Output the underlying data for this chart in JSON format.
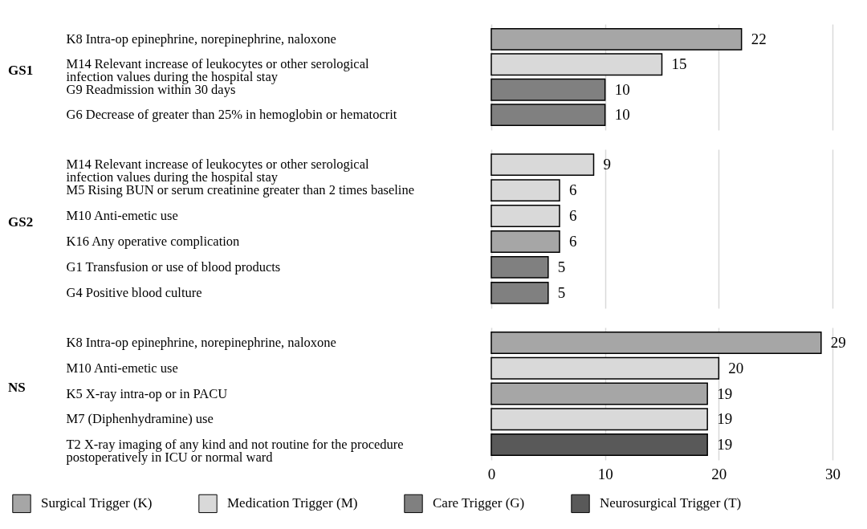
{
  "chart_data": [
    {
      "type": "bar",
      "title": "GS1",
      "orientation": "horizontal",
      "categories": [
        "K8 Intra-op epinephrine, norepinephrine, naloxone",
        "M14 Relevant increase of leukocytes or other serological infection values during the hospital stay",
        "G9 Readmission within 30 days",
        "G6 Decrease of greater than 25% in hemoglobin or hematocrit"
      ],
      "series": [
        {
          "color": "#a6a6a6",
          "values": [
            22,
            null,
            null,
            null
          ]
        },
        {
          "color": "#d9d9d9",
          "values": [
            null,
            15,
            null,
            null
          ]
        },
        {
          "color": "#808080",
          "values": [
            null,
            null,
            10,
            10
          ]
        },
        {
          "color": "#595959",
          "values": [
            null,
            null,
            null,
            null
          ]
        }
      ],
      "xlim": [
        0,
        30
      ],
      "xticks": [
        0,
        10,
        20,
        30
      ],
      "grid": "x",
      "data_labels": true,
      "tick_labels": "y",
      "legend": false
    },
    {
      "type": "bar",
      "title": "GS2",
      "orientation": "horizontal",
      "categories": [
        "M14 Relevant increase of leukocytes or other serological infection values during the hospital stay",
        "M5 Rising BUN or serum creatinine greater than 2 times baseline",
        "M10 Anti-emetic use",
        "K16 Any operative complication",
        "G1 Transfusion or use of blood products",
        "G4 Positive blood culture"
      ],
      "series": [
        {
          "color": "#a6a6a6",
          "values": [
            null,
            null,
            null,
            6,
            null,
            null
          ]
        },
        {
          "color": "#d9d9d9",
          "values": [
            9,
            6,
            6,
            null,
            null,
            null
          ]
        },
        {
          "color": "#808080",
          "values": [
            null,
            null,
            null,
            null,
            5,
            5
          ]
        },
        {
          "color": "#595959",
          "values": [
            null,
            null,
            null,
            null,
            null,
            null
          ]
        }
      ],
      "xlim": [
        0,
        30
      ],
      "xticks": [
        0,
        10,
        20,
        30
      ],
      "grid": "x",
      "data_labels": true,
      "tick_labels": "y",
      "legend": false
    },
    {
      "type": "bar",
      "title": "NS",
      "orientation": "horizontal",
      "categories": [
        "K8 Intra-op epinephrine, norepinephrine, naloxone",
        "M10 Anti-emetic use",
        "K5 X-ray intra-op or in PACU",
        "M7 (Diphenhydramine) use",
        "T2 X-ray imaging of any kind and not routine for the procedure postoperatively in ICU or normal ward"
      ],
      "series": [
        {
          "name": "Surgical Trigger (K)",
          "color": "#a6a6a6",
          "values": [
            29,
            null,
            19,
            null,
            null
          ]
        },
        {
          "name": "Medication Trigger (M)",
          "color": "#d9d9d9",
          "values": [
            null,
            20,
            null,
            19,
            null
          ]
        },
        {
          "name": "Care Trigger (G)",
          "color": "#808080",
          "values": [
            null,
            null,
            null,
            null,
            null
          ]
        },
        {
          "name": "Neurosurgical Trigger (T)",
          "color": "#595959",
          "values": [
            null,
            null,
            null,
            null,
            19
          ]
        }
      ],
      "xlim": [
        0,
        30
      ],
      "xticks": [
        0,
        10,
        20,
        30
      ],
      "grid": "x",
      "data_labels": true,
      "legend": "bottom"
    }
  ]
}
